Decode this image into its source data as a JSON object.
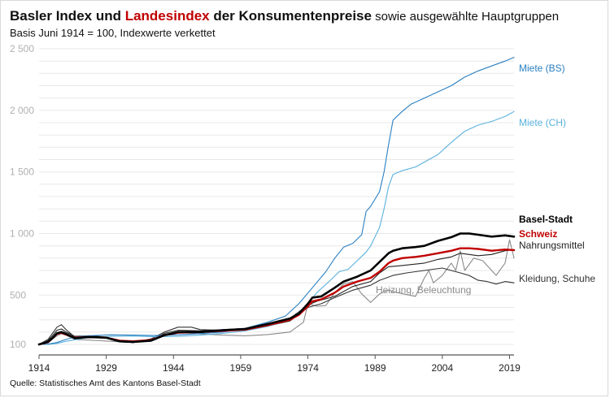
{
  "header": {
    "title_part1": "Basler Index und ",
    "title_accent": "Landesindex",
    "title_part2": " der Konsumentenpreise",
    "title_tail": " sowie ausgewählte Hauptgruppen",
    "subtitle": "Basis Juni 1914 = 100, Indexwerte verkettet"
  },
  "footer": {
    "source": "Quelle: Statistisches Amt des Kantons Basel-Stadt"
  },
  "colors": {
    "miete_bs": "#2a7fc1",
    "miete_ch": "#5ab1dd",
    "basel": "#000000",
    "schweiz": "#c00000",
    "nahrung": "#222222",
    "heizung": "#8a8a8a",
    "kleidung": "#333333",
    "grid": "#e8e8e8",
    "axis": "#555555"
  },
  "chart_data": {
    "type": "line",
    "title": "Basler Index und Landesindex der Konsumentenpreise sowie ausgewählte Hauptgruppen",
    "subtitle": "Basis Juni 1914 = 100, Indexwerte verkettet",
    "xlim": [
      1914,
      2020
    ],
    "ylim": [
      0,
      2500
    ],
    "x_ticks": [
      1914,
      1929,
      1944,
      1959,
      1974,
      1989,
      2004,
      2019
    ],
    "y_ticks": [
      {
        "value": 100,
        "label": "100"
      },
      {
        "value": 500,
        "label": "500"
      },
      {
        "value": 1000,
        "label": "1 000"
      },
      {
        "value": 1500,
        "label": "1 500"
      },
      {
        "value": 2000,
        "label": "2 000"
      },
      {
        "value": 2500,
        "label": "2 500"
      }
    ],
    "grid": true,
    "series": [
      {
        "name": "Miete (BS)",
        "color_key": "miete_bs",
        "width": 1.1,
        "label_bold": false,
        "points": [
          [
            1914,
            100
          ],
          [
            1916,
            102
          ],
          [
            1918,
            115
          ],
          [
            1920,
            140
          ],
          [
            1922,
            160
          ],
          [
            1925,
            170
          ],
          [
            1930,
            178
          ],
          [
            1935,
            175
          ],
          [
            1940,
            172
          ],
          [
            1945,
            178
          ],
          [
            1950,
            188
          ],
          [
            1955,
            200
          ],
          [
            1960,
            230
          ],
          [
            1965,
            280
          ],
          [
            1969,
            330
          ],
          [
            1972,
            430
          ],
          [
            1975,
            560
          ],
          [
            1978,
            690
          ],
          [
            1980,
            800
          ],
          [
            1982,
            890
          ],
          [
            1984,
            920
          ],
          [
            1986,
            990
          ],
          [
            1987,
            1180
          ],
          [
            1988,
            1220
          ],
          [
            1990,
            1340
          ],
          [
            1991,
            1500
          ],
          [
            1992,
            1720
          ],
          [
            1993,
            1920
          ],
          [
            1995,
            1990
          ],
          [
            1997,
            2050
          ],
          [
            2000,
            2100
          ],
          [
            2003,
            2150
          ],
          [
            2006,
            2200
          ],
          [
            2009,
            2270
          ],
          [
            2012,
            2320
          ],
          [
            2015,
            2360
          ],
          [
            2018,
            2400
          ],
          [
            2020,
            2430
          ]
        ]
      },
      {
        "name": "Miete (CH)",
        "color_key": "miete_ch",
        "width": 1.1,
        "label_bold": false,
        "points": [
          [
            1914,
            100
          ],
          [
            1916,
            100
          ],
          [
            1918,
            108
          ],
          [
            1920,
            125
          ],
          [
            1924,
            150
          ],
          [
            1930,
            165
          ],
          [
            1935,
            168
          ],
          [
            1940,
            162
          ],
          [
            1945,
            165
          ],
          [
            1950,
            175
          ],
          [
            1955,
            190
          ],
          [
            1960,
            210
          ],
          [
            1965,
            245
          ],
          [
            1970,
            300
          ],
          [
            1973,
            390
          ],
          [
            1976,
            520
          ],
          [
            1979,
            620
          ],
          [
            1981,
            690
          ],
          [
            1983,
            710
          ],
          [
            1985,
            780
          ],
          [
            1987,
            850
          ],
          [
            1988,
            900
          ],
          [
            1990,
            1050
          ],
          [
            1991,
            1200
          ],
          [
            1992,
            1380
          ],
          [
            1993,
            1480
          ],
          [
            1995,
            1510
          ],
          [
            1998,
            1540
          ],
          [
            2000,
            1580
          ],
          [
            2003,
            1640
          ],
          [
            2006,
            1740
          ],
          [
            2009,
            1830
          ],
          [
            2012,
            1880
          ],
          [
            2015,
            1910
          ],
          [
            2018,
            1950
          ],
          [
            2020,
            1990
          ]
        ]
      },
      {
        "name": "Basel-Stadt",
        "color_key": "basel",
        "width": 2.6,
        "label_bold": true,
        "points": [
          [
            1914,
            100
          ],
          [
            1916,
            120
          ],
          [
            1917,
            150
          ],
          [
            1918,
            190
          ],
          [
            1919,
            200
          ],
          [
            1920,
            185
          ],
          [
            1922,
            150
          ],
          [
            1925,
            160
          ],
          [
            1929,
            155
          ],
          [
            1932,
            125
          ],
          [
            1935,
            120
          ],
          [
            1939,
            130
          ],
          [
            1942,
            175
          ],
          [
            1945,
            200
          ],
          [
            1950,
            200
          ],
          [
            1955,
            215
          ],
          [
            1960,
            225
          ],
          [
            1965,
            265
          ],
          [
            1970,
            310
          ],
          [
            1972,
            350
          ],
          [
            1974,
            430
          ],
          [
            1975,
            480
          ],
          [
            1977,
            490
          ],
          [
            1980,
            560
          ],
          [
            1982,
            610
          ],
          [
            1985,
            650
          ],
          [
            1988,
            700
          ],
          [
            1990,
            770
          ],
          [
            1992,
            840
          ],
          [
            1993,
            860
          ],
          [
            1995,
            880
          ],
          [
            1998,
            890
          ],
          [
            2000,
            900
          ],
          [
            2003,
            940
          ],
          [
            2006,
            970
          ],
          [
            2008,
            1000
          ],
          [
            2010,
            1000
          ],
          [
            2012,
            990
          ],
          [
            2015,
            975
          ],
          [
            2018,
            985
          ],
          [
            2020,
            975
          ]
        ]
      },
      {
        "name": "Schweiz",
        "color_key": "schweiz",
        "width": 2.4,
        "label_bold": true,
        "points": [
          [
            1914,
            100
          ],
          [
            1916,
            118
          ],
          [
            1917,
            150
          ],
          [
            1918,
            185
          ],
          [
            1919,
            195
          ],
          [
            1920,
            180
          ],
          [
            1922,
            155
          ],
          [
            1925,
            160
          ],
          [
            1929,
            155
          ],
          [
            1932,
            130
          ],
          [
            1935,
            125
          ],
          [
            1939,
            135
          ],
          [
            1942,
            175
          ],
          [
            1945,
            195
          ],
          [
            1950,
            200
          ],
          [
            1955,
            210
          ],
          [
            1960,
            220
          ],
          [
            1965,
            255
          ],
          [
            1970,
            300
          ],
          [
            1972,
            340
          ],
          [
            1974,
            410
          ],
          [
            1975,
            450
          ],
          [
            1977,
            465
          ],
          [
            1980,
            520
          ],
          [
            1982,
            570
          ],
          [
            1985,
            610
          ],
          [
            1988,
            640
          ],
          [
            1990,
            690
          ],
          [
            1992,
            760
          ],
          [
            1993,
            780
          ],
          [
            1995,
            800
          ],
          [
            1998,
            810
          ],
          [
            2000,
            820
          ],
          [
            2003,
            840
          ],
          [
            2006,
            860
          ],
          [
            2008,
            880
          ],
          [
            2010,
            880
          ],
          [
            2012,
            875
          ],
          [
            2015,
            860
          ],
          [
            2018,
            870
          ],
          [
            2020,
            865
          ]
        ]
      },
      {
        "name": "Nahrungsmittel",
        "color_key": "nahrung",
        "width": 1.1,
        "label_bold": false,
        "points": [
          [
            1914,
            100
          ],
          [
            1916,
            130
          ],
          [
            1917,
            170
          ],
          [
            1918,
            215
          ],
          [
            1919,
            225
          ],
          [
            1920,
            200
          ],
          [
            1922,
            165
          ],
          [
            1925,
            170
          ],
          [
            1929,
            160
          ],
          [
            1932,
            125
          ],
          [
            1935,
            115
          ],
          [
            1939,
            135
          ],
          [
            1942,
            190
          ],
          [
            1945,
            215
          ],
          [
            1950,
            210
          ],
          [
            1955,
            220
          ],
          [
            1960,
            230
          ],
          [
            1965,
            270
          ],
          [
            1970,
            310
          ],
          [
            1974,
            420
          ],
          [
            1976,
            450
          ],
          [
            1980,
            490
          ],
          [
            1984,
            570
          ],
          [
            1988,
            610
          ],
          [
            1990,
            680
          ],
          [
            1992,
            730
          ],
          [
            1995,
            740
          ],
          [
            2000,
            760
          ],
          [
            2003,
            790
          ],
          [
            2006,
            810
          ],
          [
            2008,
            840
          ],
          [
            2012,
            820
          ],
          [
            2015,
            830
          ],
          [
            2018,
            860
          ],
          [
            2020,
            870
          ]
        ]
      },
      {
        "name": "Heizung, Beleuchtung",
        "color_key": "heizung",
        "width": 1.1,
        "label_bold": false,
        "points": [
          [
            1914,
            100
          ],
          [
            1916,
            115
          ],
          [
            1918,
            170
          ],
          [
            1919,
            185
          ],
          [
            1920,
            175
          ],
          [
            1922,
            140
          ],
          [
            1925,
            135
          ],
          [
            1930,
            125
          ],
          [
            1935,
            115
          ],
          [
            1939,
            130
          ],
          [
            1942,
            175
          ],
          [
            1945,
            200
          ],
          [
            1950,
            185
          ],
          [
            1955,
            175
          ],
          [
            1960,
            170
          ],
          [
            1965,
            180
          ],
          [
            1970,
            200
          ],
          [
            1973,
            280
          ],
          [
            1974,
            430
          ],
          [
            1976,
            410
          ],
          [
            1978,
            415
          ],
          [
            1980,
            520
          ],
          [
            1982,
            590
          ],
          [
            1984,
            610
          ],
          [
            1986,
            510
          ],
          [
            1988,
            440
          ],
          [
            1990,
            510
          ],
          [
            1992,
            540
          ],
          [
            1994,
            520
          ],
          [
            1998,
            490
          ],
          [
            2000,
            640
          ],
          [
            2001,
            700
          ],
          [
            2002,
            600
          ],
          [
            2004,
            660
          ],
          [
            2006,
            760
          ],
          [
            2007,
            700
          ],
          [
            2008,
            860
          ],
          [
            2009,
            700
          ],
          [
            2011,
            800
          ],
          [
            2013,
            780
          ],
          [
            2015,
            700
          ],
          [
            2016,
            660
          ],
          [
            2018,
            760
          ],
          [
            2019,
            950
          ],
          [
            2020,
            800
          ]
        ]
      },
      {
        "name": "Kleidung, Schuhe",
        "color_key": "kleidung",
        "width": 1.1,
        "label_bold": false,
        "points": [
          [
            1914,
            100
          ],
          [
            1916,
            140
          ],
          [
            1918,
            240
          ],
          [
            1919,
            260
          ],
          [
            1920,
            220
          ],
          [
            1922,
            160
          ],
          [
            1925,
            160
          ],
          [
            1929,
            150
          ],
          [
            1932,
            120
          ],
          [
            1935,
            115
          ],
          [
            1939,
            145
          ],
          [
            1942,
            200
          ],
          [
            1945,
            240
          ],
          [
            1948,
            240
          ],
          [
            1950,
            220
          ],
          [
            1955,
            215
          ],
          [
            1960,
            225
          ],
          [
            1965,
            250
          ],
          [
            1970,
            290
          ],
          [
            1974,
            400
          ],
          [
            1977,
            430
          ],
          [
            1980,
            480
          ],
          [
            1984,
            540
          ],
          [
            1988,
            580
          ],
          [
            1990,
            620
          ],
          [
            1993,
            660
          ],
          [
            1996,
            680
          ],
          [
            2000,
            700
          ],
          [
            2004,
            720
          ],
          [
            2006,
            700
          ],
          [
            2008,
            680
          ],
          [
            2010,
            660
          ],
          [
            2012,
            620
          ],
          [
            2014,
            610
          ],
          [
            2016,
            590
          ],
          [
            2018,
            610
          ],
          [
            2020,
            600
          ]
        ]
      }
    ]
  }
}
